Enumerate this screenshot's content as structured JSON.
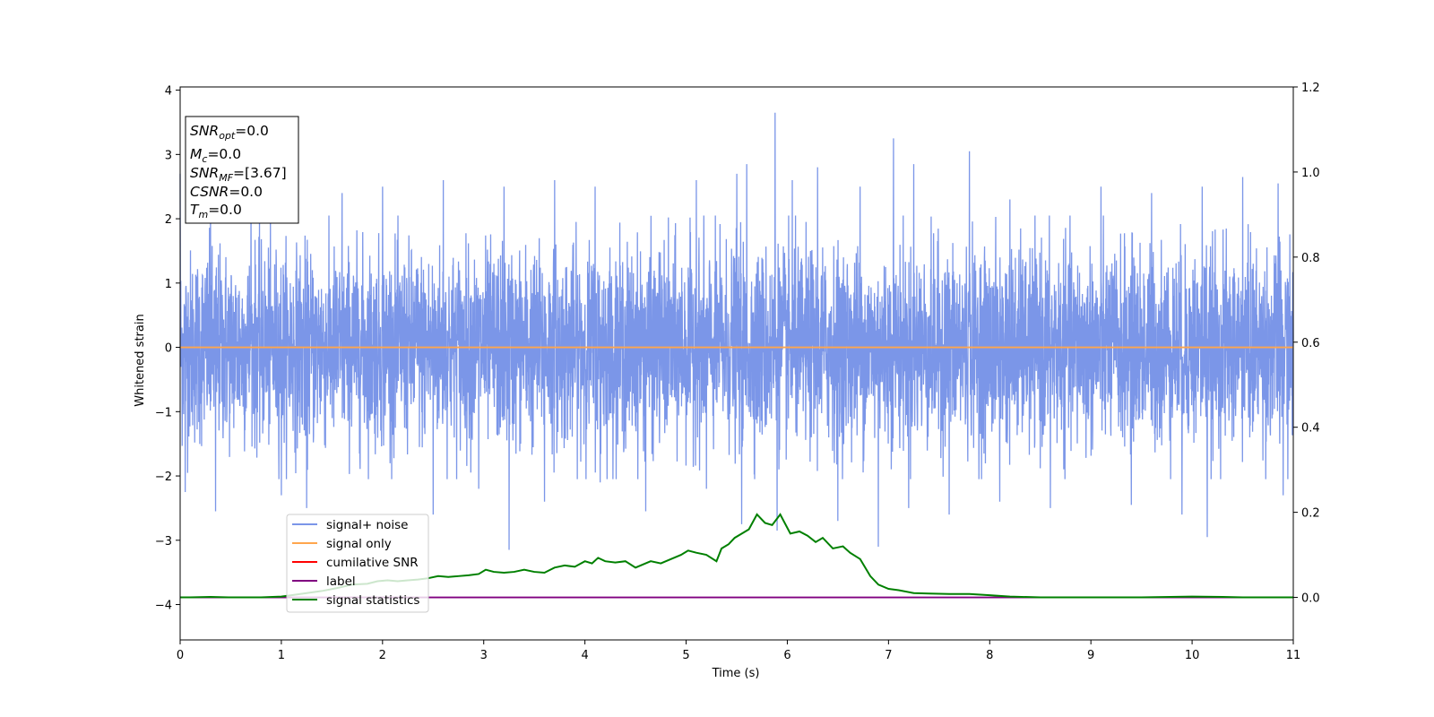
{
  "chart_data": {
    "type": "line",
    "xlabel": "Time (s)",
    "ylabel": "Whitened strain",
    "xlim": [
      0,
      11
    ],
    "ylim_left": [
      -4.55,
      4.05
    ],
    "ylim_right": [
      -0.1,
      1.2
    ],
    "x_ticks": [
      "0",
      "1",
      "2",
      "3",
      "4",
      "5",
      "6",
      "7",
      "8",
      "9",
      "10",
      "11"
    ],
    "y_ticks_left": [
      "−4",
      "−3",
      "−2",
      "−1",
      "0",
      "1",
      "2",
      "3",
      "4"
    ],
    "y_ticks_right": [
      "0.0",
      "0.2",
      "0.4",
      "0.6",
      "0.8",
      "1.0",
      "1.2"
    ],
    "grid": false,
    "legend_position": "lower-left",
    "annotation": {
      "snr_opt": {
        "sym": "SNR",
        "sub": "opt",
        "value": "=0.0"
      },
      "mc": {
        "sym": "M",
        "sub": "c",
        "value": "=0.0"
      },
      "snr_mf": {
        "sym": "SNR",
        "sub": "MF",
        "value": "=[3.67]"
      },
      "csnr": {
        "sym": "CSNR",
        "value": "=0.0"
      },
      "tm": {
        "sym": "T",
        "sub": "m",
        "value": "=0.0"
      }
    },
    "series": [
      {
        "name": "signal+ noise",
        "axis": "left",
        "color": "#7b96e8",
        "style": "dense noise",
        "typical_range": [
          -1.2,
          1.2
        ],
        "peaks_x": [
          0.0,
          0.3,
          0.7,
          1.6,
          2.0,
          2.6,
          3.2,
          3.7,
          4.1,
          4.6,
          5.1,
          5.5,
          5.6,
          5.88,
          6.05,
          6.3,
          6.5,
          6.72,
          6.9,
          7.05,
          7.25,
          7.8,
          8.2,
          8.6,
          9.1,
          9.6,
          10.1,
          10.5,
          10.85
        ],
        "peaks_y": [
          2.7,
          2.3,
          2.3,
          2.4,
          2.5,
          2.6,
          2.5,
          2.6,
          2.5,
          2.5,
          2.6,
          2.7,
          2.85,
          3.65,
          2.6,
          2.8,
          2.4,
          2.5,
          2.8,
          3.25,
          2.85,
          3.05,
          2.3,
          2.3,
          2.5,
          2.4,
          2.5,
          2.65,
          2.55
        ],
        "troughs_x": [
          0.05,
          0.35,
          1.0,
          1.25,
          2.5,
          2.95,
          3.25,
          3.6,
          4.15,
          4.6,
          5.2,
          5.55,
          5.9,
          6.5,
          6.9,
          7.2,
          7.6,
          8.1,
          8.6,
          9.4,
          9.9,
          10.15,
          10.9
        ],
        "troughs_y": [
          -2.25,
          -2.55,
          -2.3,
          -2.5,
          -2.6,
          -2.2,
          -3.15,
          -2.4,
          -2.1,
          -2.55,
          -2.2,
          -2.75,
          -2.85,
          -2.7,
          -3.1,
          -2.5,
          -2.6,
          -2.4,
          -2.5,
          -2.45,
          -2.6,
          -2.95,
          -2.3
        ]
      },
      {
        "name": "signal only",
        "axis": "left",
        "color": "#ffa64d",
        "x": [
          0,
          11
        ],
        "y": [
          0,
          0
        ]
      },
      {
        "name": "cumilative SNR",
        "axis": "left",
        "color": "#ff0000",
        "x": [],
        "y": []
      },
      {
        "name": "label",
        "axis": "right",
        "color": "#800080",
        "x": [
          0,
          11
        ],
        "y": [
          0,
          0
        ]
      },
      {
        "name": "signal statistics",
        "axis": "right",
        "color": "#008000",
        "x": [
          0.0,
          0.1,
          0.3,
          0.5,
          0.8,
          1.0,
          1.1,
          1.25,
          1.4,
          1.55,
          1.7,
          1.85,
          1.95,
          2.05,
          2.15,
          2.25,
          2.35,
          2.45,
          2.55,
          2.65,
          2.75,
          2.85,
          2.95,
          3.02,
          3.1,
          3.2,
          3.3,
          3.4,
          3.5,
          3.6,
          3.7,
          3.8,
          3.9,
          4.0,
          4.07,
          4.13,
          4.2,
          4.3,
          4.4,
          4.5,
          4.55,
          4.65,
          4.75,
          4.85,
          4.95,
          5.02,
          5.1,
          5.2,
          5.3,
          5.35,
          5.42,
          5.48,
          5.55,
          5.62,
          5.7,
          5.78,
          5.85,
          5.93,
          6.03,
          6.12,
          6.2,
          6.28,
          6.35,
          6.45,
          6.55,
          6.62,
          6.72,
          6.82,
          6.9,
          7.0,
          7.1,
          7.25,
          7.4,
          7.6,
          7.8,
          8.0,
          8.2,
          8.5,
          9.0,
          9.5,
          10.0,
          10.3,
          10.5,
          11.0
        ],
        "y": [
          0.0,
          0.0,
          0.001,
          0.0,
          0.0,
          0.002,
          0.005,
          0.01,
          0.015,
          0.022,
          0.03,
          0.032,
          0.038,
          0.04,
          0.038,
          0.04,
          0.042,
          0.045,
          0.05,
          0.048,
          0.05,
          0.052,
          0.055,
          0.065,
          0.06,
          0.058,
          0.06,
          0.065,
          0.06,
          0.058,
          0.07,
          0.075,
          0.072,
          0.085,
          0.08,
          0.093,
          0.085,
          0.082,
          0.085,
          0.07,
          0.075,
          0.085,
          0.08,
          0.09,
          0.1,
          0.11,
          0.105,
          0.1,
          0.085,
          0.115,
          0.125,
          0.14,
          0.15,
          0.16,
          0.195,
          0.175,
          0.17,
          0.195,
          0.15,
          0.155,
          0.145,
          0.13,
          0.14,
          0.115,
          0.12,
          0.105,
          0.09,
          0.05,
          0.03,
          0.02,
          0.017,
          0.01,
          0.009,
          0.008,
          0.008,
          0.005,
          0.002,
          0.0,
          0.0,
          0.0,
          0.002,
          0.001,
          0.0,
          0.0
        ]
      }
    ]
  }
}
